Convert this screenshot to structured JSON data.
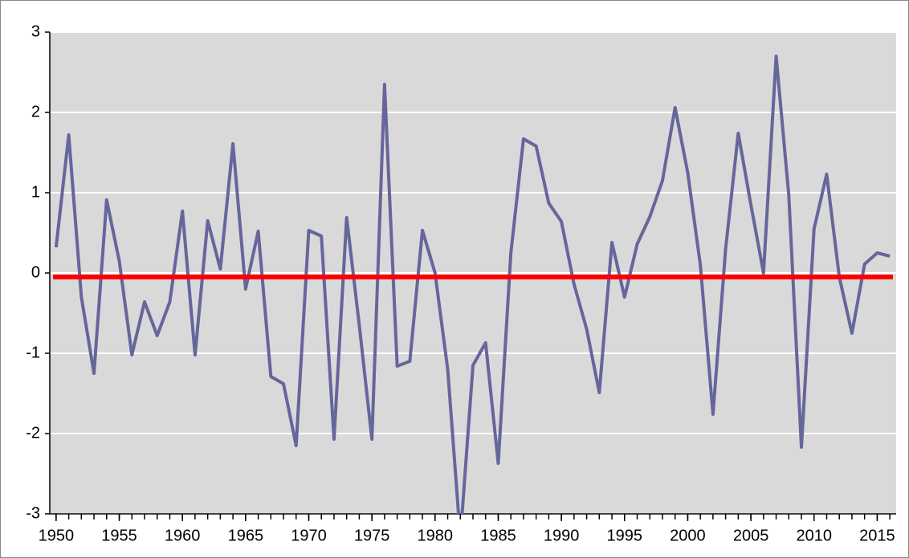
{
  "chart_data": {
    "type": "line",
    "x": [
      1950,
      1951,
      1952,
      1953,
      1954,
      1955,
      1956,
      1957,
      1958,
      1959,
      1960,
      1961,
      1962,
      1963,
      1964,
      1965,
      1966,
      1967,
      1968,
      1969,
      1970,
      1971,
      1972,
      1973,
      1974,
      1975,
      1976,
      1977,
      1978,
      1979,
      1980,
      1981,
      1982,
      1983,
      1984,
      1985,
      1986,
      1987,
      1988,
      1989,
      1990,
      1991,
      1992,
      1993,
      1994,
      1995,
      1996,
      1997,
      1998,
      1999,
      2000,
      2001,
      2002,
      2003,
      2004,
      2005,
      2006,
      2007,
      2008,
      2009,
      2010,
      2011,
      2012,
      2013,
      2014,
      2015,
      2016
    ],
    "series": [
      {
        "color": "#66669c",
        "values": [
          0.32,
          1.72,
          -0.3,
          -1.25,
          0.91,
          0.15,
          -1.02,
          -0.36,
          -0.78,
          -0.36,
          0.77,
          -1.02,
          0.65,
          0.05,
          1.61,
          -0.2,
          0.52,
          -1.29,
          -1.38,
          -2.15,
          0.53,
          0.46,
          -2.07,
          0.69,
          -0.65,
          -2.07,
          2.35,
          -1.16,
          -1.1,
          0.53,
          0.0,
          -1.2,
          -3.3,
          -1.15,
          -0.87,
          -2.37,
          0.25,
          1.67,
          1.58,
          0.87,
          0.64,
          -0.14,
          -0.7,
          -1.49,
          0.38,
          -0.3,
          0.36,
          0.7,
          1.15,
          2.06,
          1.25,
          0.1,
          -1.76,
          0.3,
          1.74,
          0.85,
          0.0,
          2.7,
          0.97,
          -2.17,
          0.55,
          1.23,
          -0.05,
          -0.75,
          0.11,
          0.25,
          0.21
        ]
      }
    ],
    "reference_line": {
      "value": -0.05,
      "color": "#ff0000"
    },
    "xlim": [
      1949.5,
      2016.5
    ],
    "xticks": [
      1950,
      1955,
      1960,
      1965,
      1970,
      1975,
      1980,
      1985,
      1990,
      1995,
      2000,
      2005,
      2010,
      2015
    ],
    "x_minor_tick_step": 1,
    "ylim": [
      -3,
      3
    ],
    "yticks": [
      -3,
      -2,
      -1,
      0,
      1,
      2,
      3
    ],
    "grid": true
  }
}
